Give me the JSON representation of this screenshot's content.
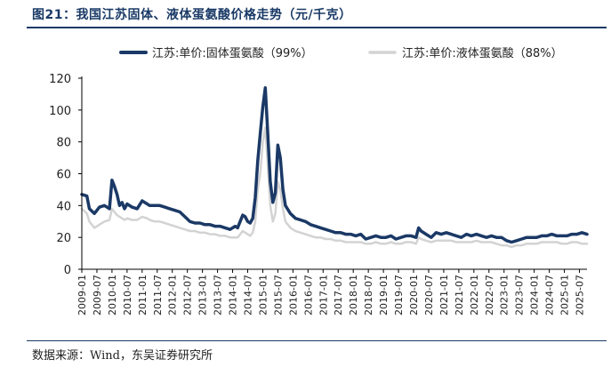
{
  "figure": {
    "title": "图21：我国江苏固体、液体蛋氨酸价格走势（元/千克）",
    "source": "数据来源：Wind，东吴证券研究所"
  },
  "colors": {
    "solid_series": "#1b3966",
    "liquid_series": "#d3d3d3",
    "rule": "#1a3a66"
  },
  "chart_data": {
    "type": "line",
    "title": "",
    "xlabel": "",
    "ylabel": "",
    "ylim": [
      0,
      120
    ],
    "yticks": [
      0,
      20,
      40,
      60,
      80,
      100,
      120
    ],
    "xlim": [
      "2009-01",
      "2025-10"
    ],
    "xticks": [
      "2009-01",
      "2009-07",
      "2010-01",
      "2010-07",
      "2011-01",
      "2011-07",
      "2012-01",
      "2012-07",
      "2013-01",
      "2013-07",
      "2014-01",
      "2014-07",
      "2015-01",
      "2015-07",
      "2016-01",
      "2016-07",
      "2017-01",
      "2017-07",
      "2018-01",
      "2018-07",
      "2019-01",
      "2019-07",
      "2020-01",
      "2020-07",
      "2021-01",
      "2021-07",
      "2022-01",
      "2022-07",
      "2023-01",
      "2023-07",
      "2024-01",
      "2024-07",
      "2025-01",
      "2025-07"
    ],
    "legend_position": "top",
    "grid": false,
    "series": [
      {
        "name": "江苏:单价:固体蛋氨酸（99%）",
        "x": [
          "2009-01",
          "2009-03",
          "2009-04",
          "2009-06",
          "2009-08",
          "2009-10",
          "2009-12",
          "2010-01",
          "2010-02",
          "2010-03",
          "2010-04",
          "2010-05",
          "2010-06",
          "2010-07",
          "2010-09",
          "2010-11",
          "2011-01",
          "2011-03",
          "2011-04",
          "2011-06",
          "2011-08",
          "2011-10",
          "2011-12",
          "2012-02",
          "2012-04",
          "2012-06",
          "2012-08",
          "2012-10",
          "2012-12",
          "2013-02",
          "2013-04",
          "2013-06",
          "2013-08",
          "2013-10",
          "2013-12",
          "2014-02",
          "2014-03",
          "2014-04",
          "2014-05",
          "2014-06",
          "2014-07",
          "2014-08",
          "2014-09",
          "2014-10",
          "2014-11",
          "2014-12",
          "2015-01",
          "2015-02",
          "2015-03",
          "2015-04",
          "2015-05",
          "2015-06",
          "2015-07",
          "2015-08",
          "2015-09",
          "2015-10",
          "2015-12",
          "2016-02",
          "2016-04",
          "2016-06",
          "2016-08",
          "2016-10",
          "2016-12",
          "2017-02",
          "2017-04",
          "2017-06",
          "2017-08",
          "2017-10",
          "2017-12",
          "2018-02",
          "2018-04",
          "2018-06",
          "2018-08",
          "2018-10",
          "2018-12",
          "2019-02",
          "2019-04",
          "2019-06",
          "2019-08",
          "2019-10",
          "2019-12",
          "2020-02",
          "2020-03",
          "2020-04",
          "2020-06",
          "2020-08",
          "2020-10",
          "2020-12",
          "2021-02",
          "2021-04",
          "2021-06",
          "2021-08",
          "2021-10",
          "2021-12",
          "2022-02",
          "2022-04",
          "2022-06",
          "2022-08",
          "2022-10",
          "2022-12",
          "2023-02",
          "2023-04",
          "2023-06",
          "2023-08",
          "2023-10",
          "2023-12",
          "2024-02",
          "2024-04",
          "2024-06",
          "2024-08",
          "2024-10",
          "2024-12",
          "2025-02",
          "2025-04",
          "2025-06",
          "2025-08",
          "2025-10"
        ],
        "y": [
          47,
          46,
          38,
          35,
          39,
          40,
          38,
          56,
          52,
          47,
          40,
          42,
          38,
          41,
          39,
          38,
          43,
          41,
          40,
          40,
          40,
          39,
          38,
          37,
          36,
          33,
          30,
          29,
          29,
          28,
          28,
          27,
          27,
          26,
          25,
          27,
          26,
          30,
          34,
          33,
          30,
          29,
          32,
          45,
          68,
          85,
          102,
          114,
          85,
          55,
          42,
          48,
          78,
          70,
          50,
          40,
          35,
          32,
          31,
          30,
          28,
          27,
          26,
          25,
          24,
          23,
          23,
          22,
          22,
          21,
          22,
          19,
          20,
          21,
          20,
          20,
          21,
          19,
          20,
          21,
          21,
          20,
          26,
          24,
          22,
          20,
          23,
          22,
          23,
          22,
          21,
          20,
          22,
          21,
          22,
          21,
          20,
          21,
          20,
          20,
          18,
          17,
          18,
          19,
          20,
          20,
          20,
          21,
          21,
          22,
          21,
          21,
          21,
          22,
          22,
          23,
          22
        ]
      },
      {
        "name": "江苏:单价:液体蛋氨酸（88%）",
        "x": [
          "2009-01",
          "2009-03",
          "2009-04",
          "2009-06",
          "2009-08",
          "2009-10",
          "2009-12",
          "2010-01",
          "2010-02",
          "2010-03",
          "2010-04",
          "2010-05",
          "2010-06",
          "2010-07",
          "2010-09",
          "2010-11",
          "2011-01",
          "2011-03",
          "2011-04",
          "2011-06",
          "2011-08",
          "2011-10",
          "2011-12",
          "2012-02",
          "2012-04",
          "2012-06",
          "2012-08",
          "2012-10",
          "2012-12",
          "2013-02",
          "2013-04",
          "2013-06",
          "2013-08",
          "2013-10",
          "2013-12",
          "2014-02",
          "2014-03",
          "2014-04",
          "2014-05",
          "2014-06",
          "2014-07",
          "2014-08",
          "2014-09",
          "2014-10",
          "2014-11",
          "2014-12",
          "2015-01",
          "2015-02",
          "2015-03",
          "2015-04",
          "2015-05",
          "2015-06",
          "2015-07",
          "2015-08",
          "2015-09",
          "2015-10",
          "2015-12",
          "2016-02",
          "2016-04",
          "2016-06",
          "2016-08",
          "2016-10",
          "2016-12",
          "2017-02",
          "2017-04",
          "2017-06",
          "2017-08",
          "2017-10",
          "2017-12",
          "2018-02",
          "2018-04",
          "2018-06",
          "2018-08",
          "2018-10",
          "2018-12",
          "2019-02",
          "2019-04",
          "2019-06",
          "2019-08",
          "2019-10",
          "2019-12",
          "2020-02",
          "2020-03",
          "2020-04",
          "2020-06",
          "2020-08",
          "2020-10",
          "2020-12",
          "2021-02",
          "2021-04",
          "2021-06",
          "2021-08",
          "2021-10",
          "2021-12",
          "2022-02",
          "2022-04",
          "2022-06",
          "2022-08",
          "2022-10",
          "2022-12",
          "2023-02",
          "2023-04",
          "2023-06",
          "2023-08",
          "2023-10",
          "2023-12",
          "2024-02",
          "2024-04",
          "2024-06",
          "2024-08",
          "2024-10",
          "2024-12",
          "2025-02",
          "2025-04",
          "2025-06",
          "2025-08",
          "2025-10"
        ],
        "y": [
          38,
          35,
          30,
          26,
          28,
          30,
          31,
          38,
          36,
          34,
          33,
          32,
          31,
          32,
          31,
          31,
          33,
          32,
          31,
          30,
          30,
          29,
          28,
          27,
          26,
          25,
          24,
          24,
          23,
          23,
          22,
          22,
          21,
          21,
          20,
          20,
          20,
          22,
          24,
          23,
          22,
          21,
          23,
          30,
          50,
          60,
          80,
          89,
          65,
          40,
          30,
          35,
          55,
          50,
          38,
          30,
          26,
          24,
          23,
          22,
          21,
          20,
          20,
          19,
          19,
          18,
          18,
          17,
          17,
          17,
          17,
          16,
          16,
          17,
          16,
          16,
          17,
          16,
          16,
          17,
          17,
          16,
          20,
          19,
          18,
          17,
          18,
          18,
          18,
          18,
          17,
          17,
          17,
          17,
          18,
          17,
          17,
          17,
          16,
          15,
          15,
          14,
          15,
          15,
          16,
          16,
          16,
          17,
          17,
          17,
          17,
          16,
          16,
          17,
          17,
          16,
          16
        ]
      }
    ]
  }
}
